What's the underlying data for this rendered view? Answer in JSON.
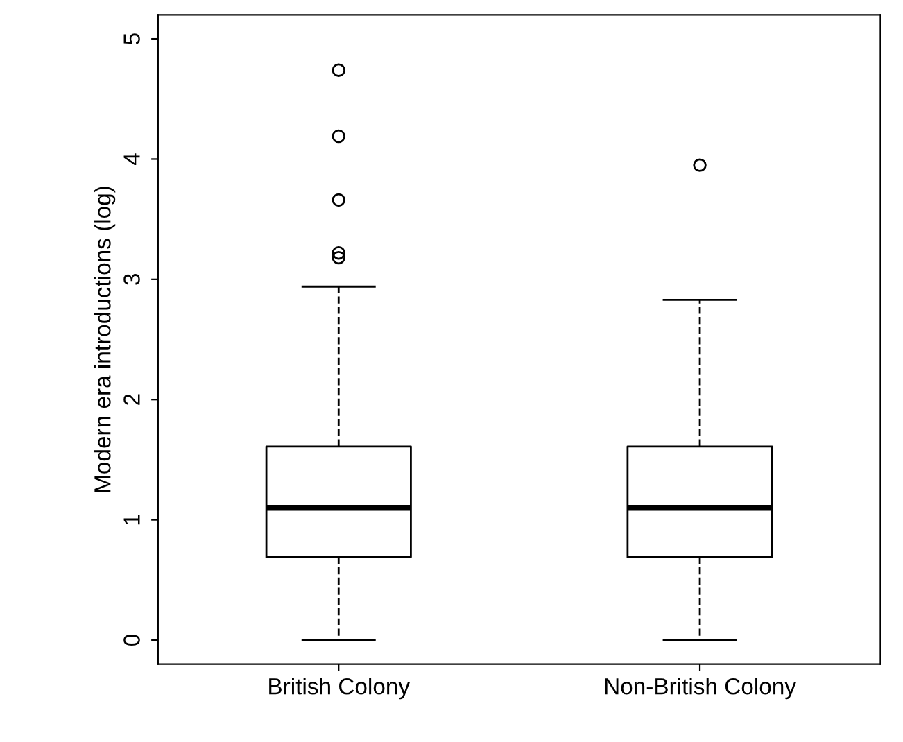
{
  "chart_data": {
    "type": "box",
    "ylabel": "Modern era introductions (log)",
    "categories": [
      "British Colony",
      "Non-British Colony"
    ],
    "boxes": [
      {
        "low": 0,
        "q1": 0.69,
        "median": 1.1,
        "q3": 1.61,
        "high": 2.94,
        "outliers": [
          4.74,
          4.19,
          3.66,
          3.22,
          3.18
        ]
      },
      {
        "low": 0,
        "q1": 0.69,
        "median": 1.1,
        "q3": 1.61,
        "high": 2.83,
        "outliers": [
          3.95
        ]
      }
    ],
    "ylim": [
      -0.2,
      5.2
    ],
    "yticks": [
      0,
      1,
      2,
      3,
      4,
      5
    ],
    "grid": false
  }
}
